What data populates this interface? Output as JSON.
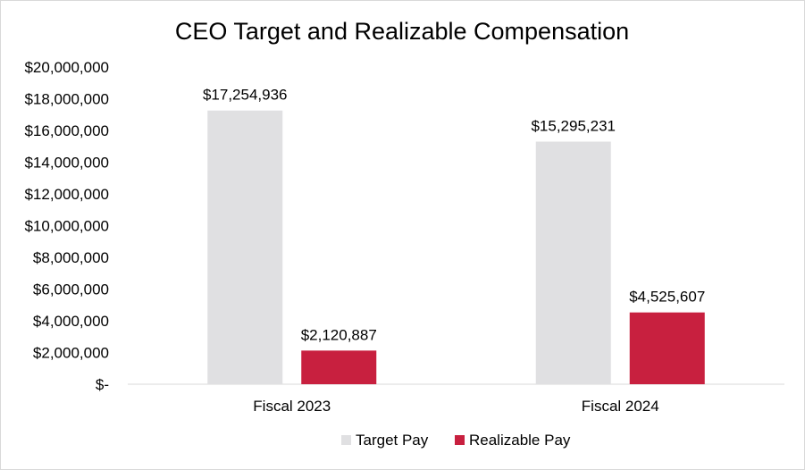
{
  "chart_data": {
    "type": "bar",
    "title": "CEO Target and Realizable Compensation",
    "xlabel": "",
    "ylabel": "",
    "categories": [
      "Fiscal 2023",
      "Fiscal 2024"
    ],
    "series": [
      {
        "name": "Target Pay",
        "color": "#e0e0e2",
        "values": [
          17254936,
          15295231
        ],
        "labels": [
          "$17,254,936",
          "$15,295,231"
        ]
      },
      {
        "name": "Realizable Pay",
        "color": "#c8203f",
        "values": [
          2120887,
          4525607
        ],
        "labels": [
          "$2,120,887",
          "$4,525,607"
        ]
      }
    ],
    "ylim": [
      0,
      20000000
    ],
    "yticks": [
      0,
      2000000,
      4000000,
      6000000,
      8000000,
      10000000,
      12000000,
      14000000,
      16000000,
      18000000,
      20000000
    ],
    "ytick_labels": [
      "$-",
      "$2,000,000",
      "$4,000,000",
      "$6,000,000",
      "$8,000,000",
      "$10,000,000",
      "$12,000,000",
      "$14,000,000",
      "$16,000,000",
      "$18,000,000",
      "$20,000,000"
    ],
    "grid": false,
    "legend_position": "bottom"
  }
}
